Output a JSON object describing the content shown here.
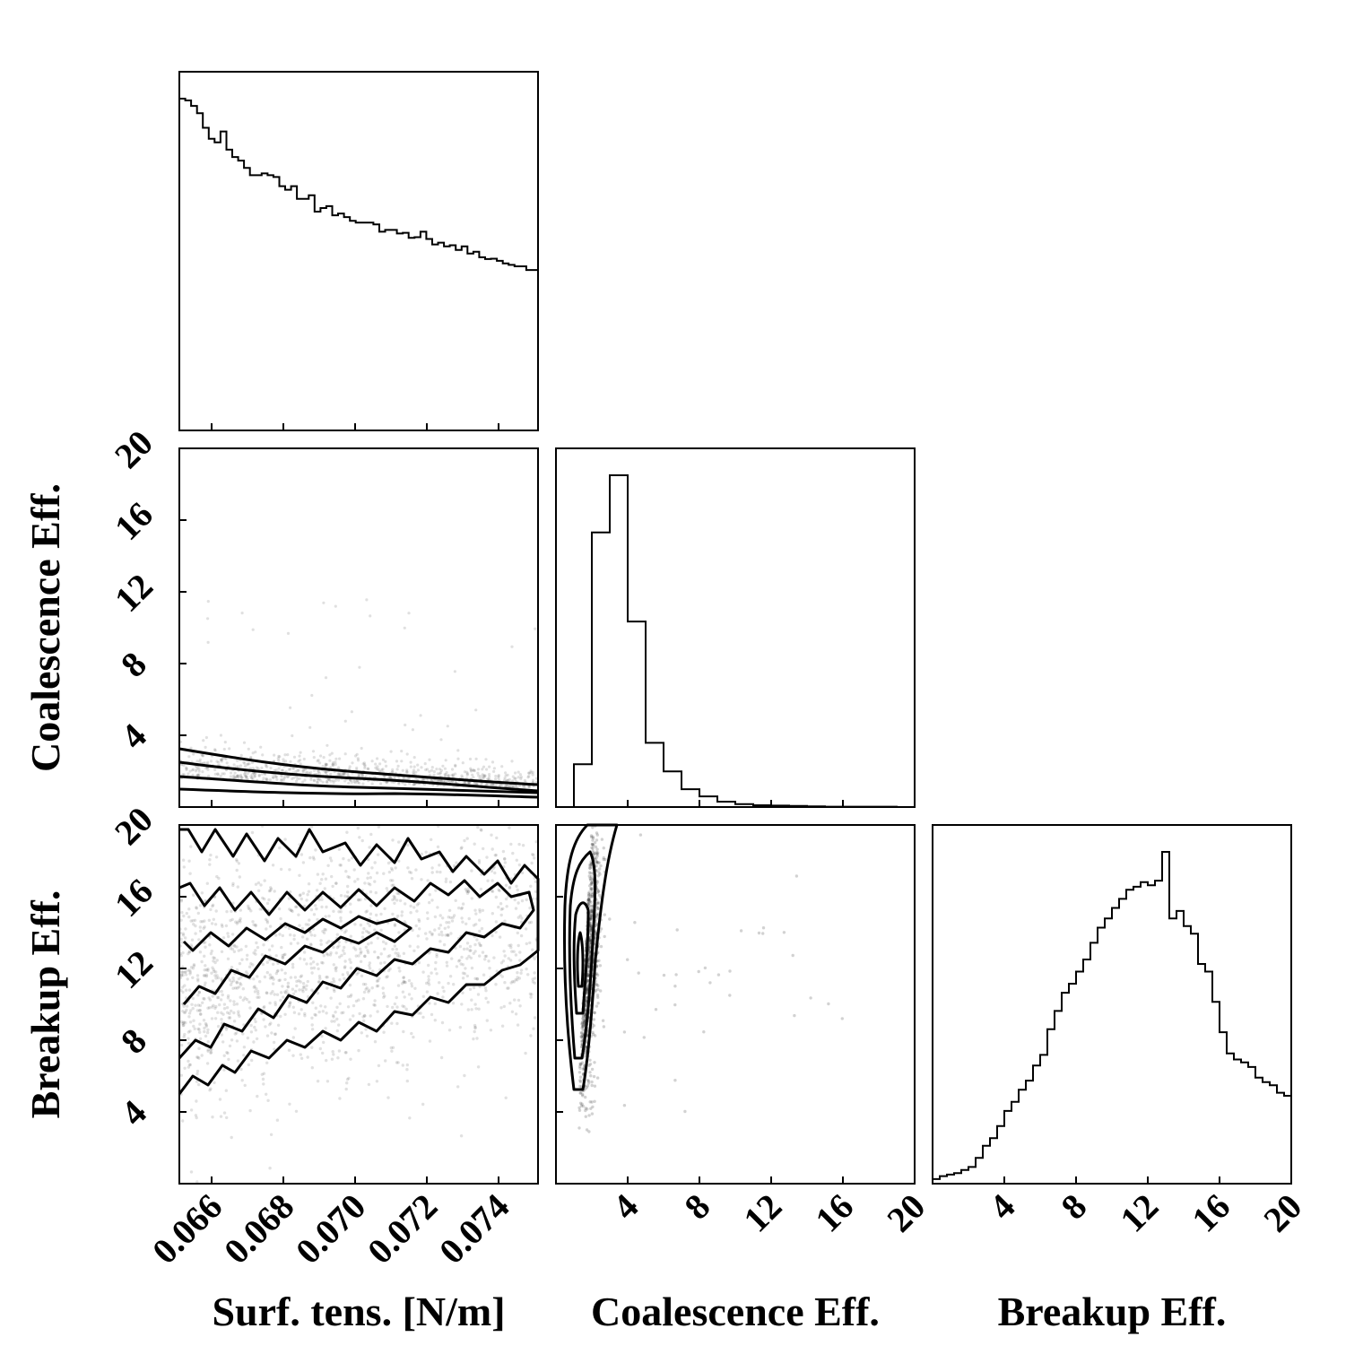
{
  "chart_data": {
    "type": "corner",
    "parameters": [
      "Surf. tens. [N/m]",
      "Coalescence Eff.",
      "Breakup Eff."
    ],
    "grid": false,
    "axes": {
      "surf_tens": {
        "label": "Surf. tens. [N/m]",
        "range": [
          0.0651,
          0.0751
        ],
        "ticks": [
          0.066,
          0.068,
          0.07,
          0.072,
          0.074
        ],
        "tick_labels": [
          "0.066",
          "0.068",
          "0.070",
          "0.072",
          "0.074"
        ]
      },
      "coalescence": {
        "label": "Coalescence Eff.",
        "range": [
          0,
          20
        ],
        "ticks": [
          4,
          8,
          12,
          16,
          20
        ],
        "tick_labels": [
          "4",
          "8",
          "12",
          "16",
          "20"
        ]
      },
      "breakup": {
        "label": "Breakup Eff.",
        "range": [
          0,
          20
        ],
        "ticks": [
          4,
          8,
          12,
          16,
          20
        ],
        "tick_labels": [
          "4",
          "8",
          "12",
          "16",
          "20"
        ]
      }
    },
    "histograms": {
      "surf_tens": {
        "bin_range": [
          0.0651,
          0.0751
        ],
        "counts": [
          910,
          905,
          890,
          870,
          830,
          800,
          790,
          820,
          770,
          750,
          740,
          720,
          700,
          700,
          705,
          700,
          695,
          670,
          660,
          670,
          635,
          635,
          645,
          600,
          610,
          615,
          590,
          595,
          585,
          575,
          570,
          570,
          570,
          565,
          545,
          550,
          550,
          540,
          542,
          528,
          530,
          545,
          525,
          510,
          515,
          505,
          508,
          495,
          505,
          485,
          490,
          475,
          470,
          471,
          465,
          458,
          454,
          450,
          450,
          440,
          440
        ]
      },
      "coalescence": {
        "bin_range": [
          0,
          20
        ],
        "counts": [
          0,
          120,
          770,
          930,
          520,
          180,
          100,
          50,
          30,
          15,
          8,
          5,
          4,
          3,
          2,
          1,
          1,
          1,
          1,
          0
        ]
      },
      "breakup": {
        "bin_range": [
          0,
          20
        ],
        "counts": [
          3,
          5,
          6,
          7,
          9,
          11,
          17,
          25,
          30,
          38,
          48,
          54,
          62,
          68,
          78,
          85,
          102,
          114,
          126,
          132,
          140,
          148,
          159,
          169,
          175,
          182,
          188,
          194,
          196,
          199,
          197,
          200,
          219,
          175,
          180,
          170,
          165,
          145,
          140,
          120,
          100,
          86,
          82,
          80,
          77,
          70,
          67,
          65,
          60,
          58
        ]
      }
    },
    "scatter_contour_panels": [
      {
        "x": "surf_tens",
        "y": "coalescence",
        "density_peak_y": 1.5,
        "trend": "y decreases slightly as x increases"
      },
      {
        "x": "surf_tens",
        "y": "breakup",
        "density_peak_y": 12,
        "trend": "y increases as x increases"
      },
      {
        "x": "coalescence",
        "y": "breakup",
        "density_peak_x": 1.5,
        "density_peak_y": 12
      }
    ]
  }
}
